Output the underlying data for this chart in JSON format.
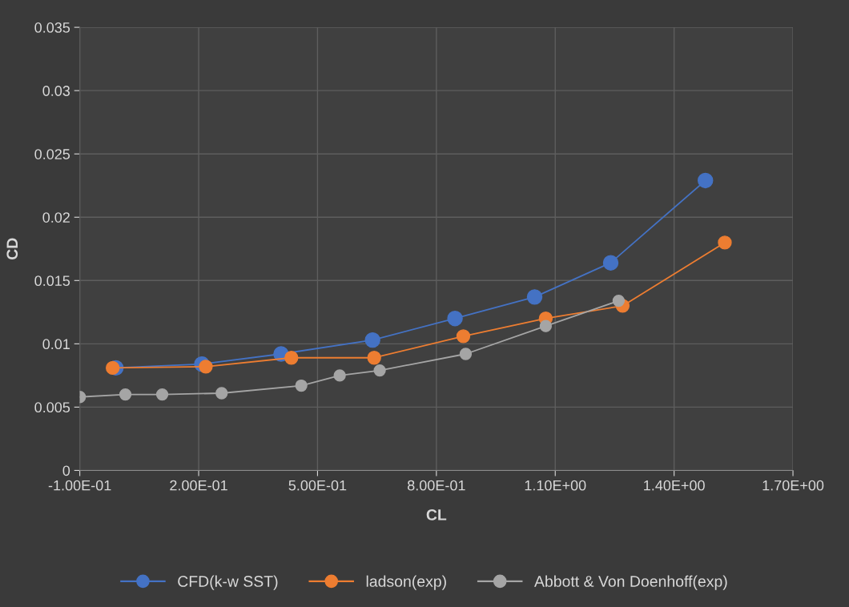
{
  "chart_data": {
    "type": "line",
    "xlabel": "CL",
    "ylabel": "CD",
    "xlim": [
      -0.1,
      1.7
    ],
    "ylim": [
      0,
      0.035
    ],
    "xticks": [
      {
        "value": -0.1,
        "label": "-1.00E-01"
      },
      {
        "value": 0.2,
        "label": "2.00E-01"
      },
      {
        "value": 0.5,
        "label": "5.00E-01"
      },
      {
        "value": 0.8,
        "label": "8.00E-01"
      },
      {
        "value": 1.1,
        "label": "1.10E+00"
      },
      {
        "value": 1.4,
        "label": "1.40E+00"
      },
      {
        "value": 1.7,
        "label": "1.70E+00"
      }
    ],
    "yticks": [
      0,
      0.005,
      0.01,
      0.015,
      0.02,
      0.025,
      0.03,
      0.035
    ],
    "grid": true,
    "legend": "bottom",
    "marker": "circle",
    "line_style": "solid",
    "series": [
      {
        "name": "CFD(k-w SST)",
        "color": "#4472c4",
        "x": [
          -0.009,
          0.208,
          0.408,
          0.639,
          0.847,
          1.048,
          1.24,
          1.479
        ],
        "values": [
          0.0081,
          0.0084,
          0.0092,
          0.0103,
          0.012,
          0.0137,
          0.0164,
          0.0229
        ]
      },
      {
        "name": "ladson(exp)",
        "color": "#ed7d31",
        "x": [
          -0.017,
          0.218,
          0.434,
          0.643,
          0.868,
          1.076,
          1.27,
          1.528
        ],
        "values": [
          0.0081,
          0.0082,
          0.0089,
          0.0089,
          0.0106,
          0.012,
          0.013,
          0.018
        ]
      },
      {
        "name": "Abbott & Von Doenhoff(exp)",
        "color": "#a5a5a5",
        "x": [
          -0.1,
          0.015,
          0.108,
          0.258,
          0.459,
          0.556,
          0.657,
          0.874,
          1.076,
          1.26
        ],
        "values": [
          0.0058,
          0.006,
          0.006,
          0.0061,
          0.0067,
          0.0075,
          0.0079,
          0.0092,
          0.0114,
          0.0134
        ]
      }
    ]
  }
}
